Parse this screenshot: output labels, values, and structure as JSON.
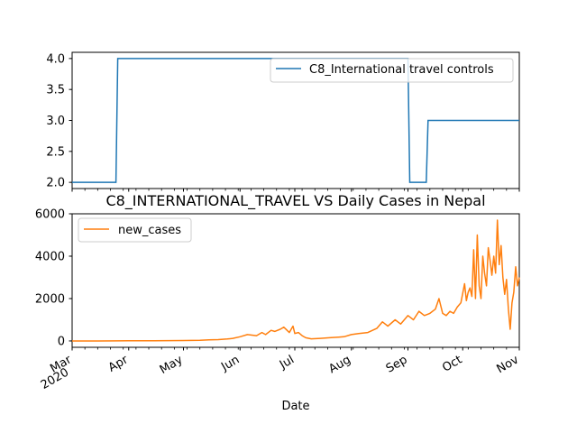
{
  "chart_data": [
    {
      "type": "line",
      "x_dates": [
        "2020-03-01",
        "2020-03-25",
        "2020-03-26",
        "2020-09-01",
        "2020-09-02",
        "2020-09-11",
        "2020-09-12",
        "2020-11-01"
      ],
      "series": [
        {
          "name": "C8_International travel controls",
          "color": "#1f77b4",
          "values": [
            2,
            2,
            4,
            4,
            2,
            2,
            3,
            3
          ]
        }
      ],
      "ylim": [
        1.9,
        4.1
      ],
      "yticks": [
        "2.0",
        "2.5",
        "3.0",
        "3.5",
        "4.0"
      ],
      "legend": "top-right",
      "grid": false
    },
    {
      "type": "line",
      "title": "C8_INTERNATIONAL_TRAVEL VS Daily Cases in Nepal",
      "xlabel": "Date",
      "x_dates": [
        "2020-03-01",
        "2020-03-15",
        "2020-04-01",
        "2020-04-15",
        "2020-05-01",
        "2020-05-10",
        "2020-05-15",
        "2020-05-20",
        "2020-05-25",
        "2020-05-28",
        "2020-06-01",
        "2020-06-05",
        "2020-06-10",
        "2020-06-13",
        "2020-06-15",
        "2020-06-18",
        "2020-06-20",
        "2020-06-23",
        "2020-06-25",
        "2020-06-28",
        "2020-06-30",
        "2020-07-01",
        "2020-07-03",
        "2020-07-05",
        "2020-07-07",
        "2020-07-10",
        "2020-07-15",
        "2020-07-20",
        "2020-07-25",
        "2020-07-28",
        "2020-08-01",
        "2020-08-05",
        "2020-08-10",
        "2020-08-15",
        "2020-08-18",
        "2020-08-21",
        "2020-08-25",
        "2020-08-28",
        "2020-09-01",
        "2020-09-04",
        "2020-09-07",
        "2020-09-10",
        "2020-09-13",
        "2020-09-16",
        "2020-09-18",
        "2020-09-20",
        "2020-09-22",
        "2020-09-24",
        "2020-09-26",
        "2020-09-28",
        "2020-09-30",
        "2020-10-02",
        "2020-10-03",
        "2020-10-04",
        "2020-10-05",
        "2020-10-06",
        "2020-10-07",
        "2020-10-08",
        "2020-10-09",
        "2020-10-10",
        "2020-10-11",
        "2020-10-12",
        "2020-10-13",
        "2020-10-14",
        "2020-10-15",
        "2020-10-16",
        "2020-10-17",
        "2020-10-18",
        "2020-10-19",
        "2020-10-20",
        "2020-10-21",
        "2020-10-22",
        "2020-10-23",
        "2020-10-24",
        "2020-10-25",
        "2020-10-26",
        "2020-10-27",
        "2020-10-28",
        "2020-10-29",
        "2020-10-30",
        "2020-10-31",
        "2020-11-01"
      ],
      "series": [
        {
          "name": "new_cases",
          "color": "#ff7f0e",
          "values": [
            0,
            0,
            5,
            10,
            20,
            30,
            50,
            60,
            90,
            120,
            200,
            300,
            250,
            400,
            300,
            500,
            450,
            550,
            650,
            400,
            700,
            350,
            400,
            250,
            150,
            100,
            120,
            150,
            180,
            200,
            300,
            350,
            400,
            600,
            900,
            700,
            1000,
            800,
            1200,
            1000,
            1400,
            1200,
            1300,
            1500,
            2000,
            1300,
            1200,
            1400,
            1300,
            1600,
            1800,
            2700,
            1900,
            2300,
            2500,
            2100,
            4300,
            2000,
            5000,
            2600,
            2000,
            4000,
            3200,
            2600,
            4400,
            3800,
            3100,
            4000,
            3200,
            5700,
            3600,
            4500,
            3000,
            2200,
            2900,
            1500,
            550,
            1800,
            2300,
            3500,
            2600,
            3000
          ]
        }
      ],
      "ylim": [
        -300,
        6000
      ],
      "yticks": [
        "0",
        "2000",
        "4000",
        "6000"
      ],
      "xticks": [
        {
          "date": "2020-03-01",
          "label": "Mar",
          "sub": "2020"
        },
        {
          "date": "2020-04-01",
          "label": "Apr"
        },
        {
          "date": "2020-05-01",
          "label": "May"
        },
        {
          "date": "2020-06-01",
          "label": "Jun"
        },
        {
          "date": "2020-07-01",
          "label": "Jul"
        },
        {
          "date": "2020-08-01",
          "label": "Aug"
        },
        {
          "date": "2020-09-01",
          "label": "Sep"
        },
        {
          "date": "2020-10-01",
          "label": "Oct"
        },
        {
          "date": "2020-11-01",
          "label": "Nov"
        }
      ],
      "xlim": [
        "2020-03-01",
        "2020-11-01"
      ],
      "legend": "top-left",
      "grid": false
    }
  ]
}
